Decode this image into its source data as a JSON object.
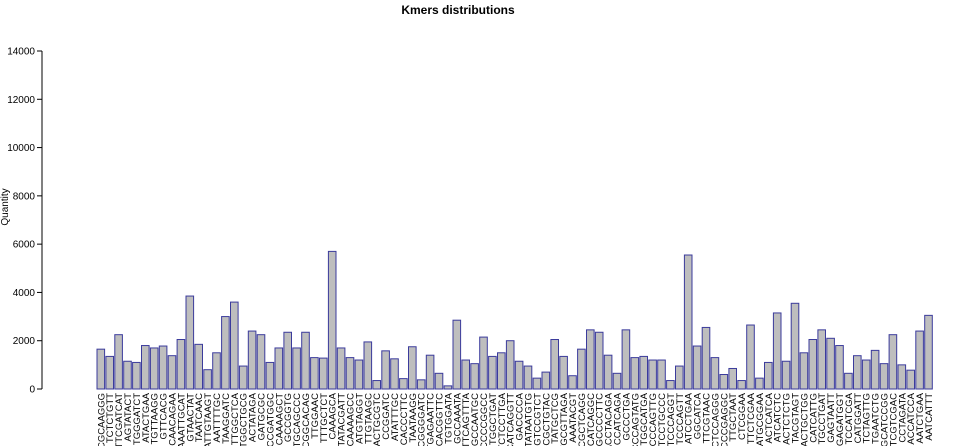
{
  "chart_data": {
    "type": "bar",
    "title": "Kmers distributions",
    "xlabel": "",
    "ylabel": "Quantity",
    "ylim": [
      0,
      14000
    ],
    "yticks": [
      0,
      2000,
      4000,
      6000,
      8000,
      10000,
      12000,
      14000
    ],
    "grid": false,
    "colors": {
      "bar_fill": "#bebebe",
      "bar_stroke": "#3b3b9c"
    },
    "categories": [
      "CGCAAGGG",
      "TCTCTGTT",
      "TTCGATCAT",
      "AGTATACT",
      "TGGGATCT",
      "ATACTGAA",
      "TGTTAAGG",
      "GTTCACG",
      "CAACAGAA",
      "AAATTGCAT",
      "GTAACTAT",
      "TAATCAAC",
      "ATTGTAAGT",
      "AATTTTGC",
      "TAAGGATC",
      "TTGGCTCA",
      "TGGCTGCG",
      "ACTATAGA",
      "GATGCGC",
      "CCGATGGC",
      "CAAAAGCT",
      "GCCGGTG",
      "TGCAGCCC",
      "CGGCACAG",
      "TTGGAAC",
      "TTTGCTCT",
      "CAAAGCA",
      "TATACGATT",
      "CAAAAGCC",
      "ATGTAGGT",
      "TTGTAAGC",
      "ACTGCGTC",
      "CCGGATC",
      "ATATTTGC",
      "CACCCTTC",
      "TAATAAGG",
      "CGGGGATC",
      "TGAGAATTC",
      "TCACGGTTC",
      "TGTGGATA",
      "GCCAAATA",
      "TTCAGTTTA",
      "GCCAATGC",
      "CCCCGGCC",
      "TGGCTGAT",
      "TCTCCTTGA",
      "TCATCAGGTT",
      "GACCCCA",
      "TATAATGTG",
      "GTCCGTCT",
      "GCGCTGTAC",
      "TATGCTCG",
      "TGCGTTAGA",
      "AAATACGT",
      "CGCTCAGG",
      "CATCAGGC",
      "GCCCCTTC",
      "ACCTACAGA",
      "CCATCAGA",
      "GCCCTGA",
      "CCCAGTATG",
      "TGGCATGA",
      "CCCAGTTG",
      "GTCCTGCCC",
      "TCCCAGGT",
      "TCCCAGTT",
      "ATCCTGAA",
      "GGCATCA",
      "TTCGTAAC",
      "CCTCCAGGG",
      "CCCGAGGC",
      "TTGCTAAT",
      "CTCGGAA",
      "TTCTCGAA",
      "ATGCGGAA",
      "ACTCATCA",
      "ATCATCTC",
      "ACTCTCTG",
      "TACGTAGT",
      "ACTGCTGG",
      "CATCATTG",
      "TGCCTGAT",
      "GAGTAATT",
      "GAGATGGT",
      "TCCATCGA",
      "CATGGATT",
      "TCTAGTTG",
      "TGAATCTG",
      "GCATCCGG",
      "TCGTCGAC",
      "CCTAGATA",
      "ACCATCCA",
      "AATCTGAA",
      "AATCATTT"
    ],
    "values": [
      1650,
      1350,
      2250,
      1150,
      1100,
      1800,
      1700,
      1780,
      1380,
      2050,
      3850,
      1850,
      800,
      1500,
      3000,
      3600,
      950,
      2400,
      2250,
      1100,
      1700,
      2350,
      1700,
      2350,
      1300,
      1280,
      5700,
      1700,
      1300,
      1200,
      1950,
      350,
      1580,
      1250,
      430,
      1750,
      380,
      1400,
      650,
      130,
      2850,
      1200,
      1050,
      2150,
      1350,
      1500,
      2000,
      1150,
      950,
      450,
      700,
      2050,
      1350,
      550,
      1650,
      2450,
      2350,
      1400,
      650,
      2450,
      1300,
      1350,
      1200,
      1200,
      350,
      950,
      5550,
      1780,
      2550,
      1300,
      600,
      850,
      350,
      2650,
      450,
      1100,
      3150,
      1150,
      3550,
      1500,
      2050,
      2450,
      2100,
      1800,
      650,
      1380,
      1200,
      1600,
      1050,
      2250,
      1000,
      780,
      2400,
      3050
    ]
  }
}
